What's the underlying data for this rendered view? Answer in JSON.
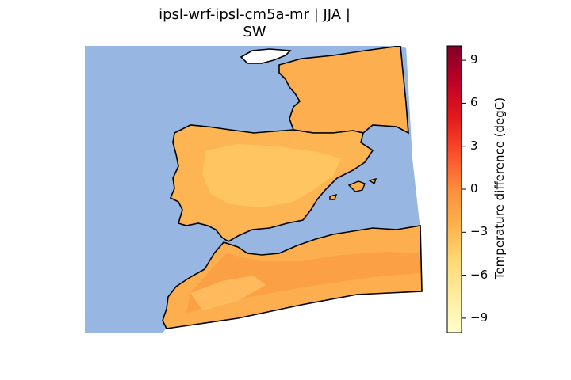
{
  "title_line1": "ipsl-wrf-ipsl-cm5a-mr | JJA |",
  "title_line2": "SW",
  "colorbar": {
    "label": "Temperature difference (degC)",
    "ticks": [
      "9",
      "6",
      "3",
      "0",
      "−3",
      "−6",
      "−9"
    ],
    "range": [
      -10,
      10
    ],
    "colormap": [
      "#ffffcc",
      "#ffeda0",
      "#fed976",
      "#feb24c",
      "#fd8d3c",
      "#fc4e2a",
      "#e31a1c",
      "#bd0026",
      "#800026"
    ]
  },
  "colors": {
    "sea": "#97b6e1",
    "land_main": "#fdae4e",
    "land_warm": "#fb9a41",
    "land_cool": "#fed470",
    "coastline": "#000000"
  }
}
